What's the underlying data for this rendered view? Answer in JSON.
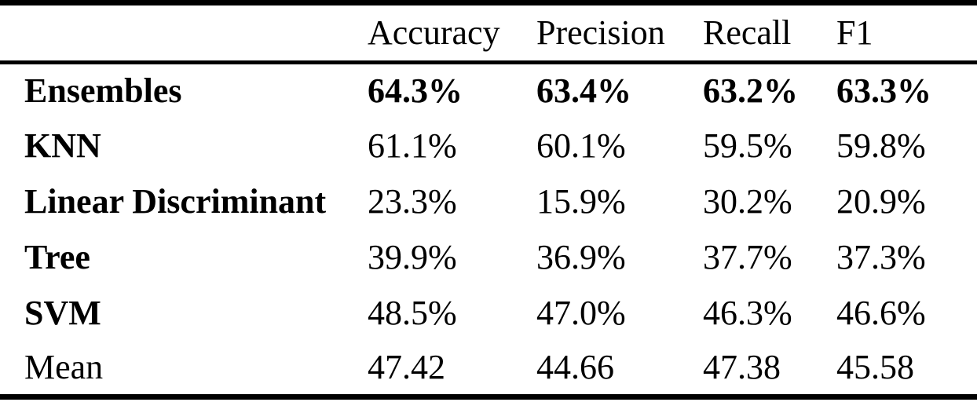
{
  "table": {
    "columns": [
      "",
      "Accuracy",
      "Precision",
      "Recall",
      "F1"
    ],
    "rows": [
      {
        "label": "Ensembles",
        "values": [
          "64.3%",
          "63.4%",
          "63.2%",
          "63.3%"
        ]
      },
      {
        "label": "KNN",
        "values": [
          "61.1%",
          "60.1%",
          "59.5%",
          "59.8%"
        ]
      },
      {
        "label": "Linear Discriminant",
        "values": [
          "23.3%",
          "15.9%",
          "30.2%",
          "20.9%"
        ]
      },
      {
        "label": "Tree",
        "values": [
          "39.9%",
          "36.9%",
          "37.7%",
          "37.3%"
        ]
      },
      {
        "label": "SVM",
        "values": [
          "48.5%",
          "47.0%",
          "46.3%",
          "46.6%"
        ]
      },
      {
        "label": "Mean",
        "values": [
          "47.42",
          "44.66",
          "47.38",
          "45.58"
        ]
      }
    ]
  },
  "colors": {
    "text": "#000000",
    "background": "#ffffff",
    "rule": "#000000"
  }
}
